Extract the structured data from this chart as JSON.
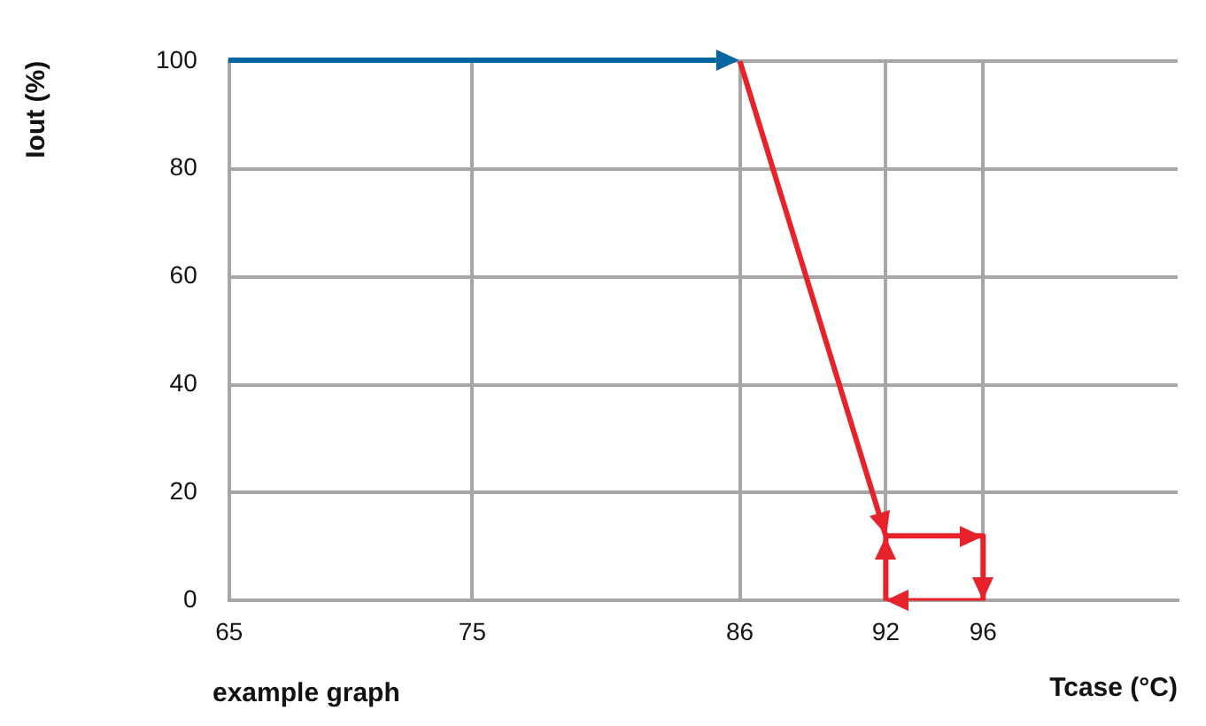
{
  "chart_data": {
    "type": "line",
    "xlabel": "Tcase (°C)",
    "ylabel": "Iout (%)",
    "annotations": [
      "example graph"
    ],
    "xlim": [
      65,
      104
    ],
    "xticks": [
      65,
      75,
      86,
      92,
      96
    ],
    "ylim": [
      0,
      100
    ],
    "yticks": [
      0,
      20,
      40,
      60,
      80,
      100
    ],
    "grid": true,
    "legend": false,
    "marker": "none",
    "line_style": "solid",
    "series": [
      {
        "color": "#e8222a",
        "x": [
          86,
          92,
          96,
          96,
          92,
          92
        ],
        "values": [
          100,
          12,
          12,
          0,
          0,
          12
        ]
      }
    ]
  }
}
